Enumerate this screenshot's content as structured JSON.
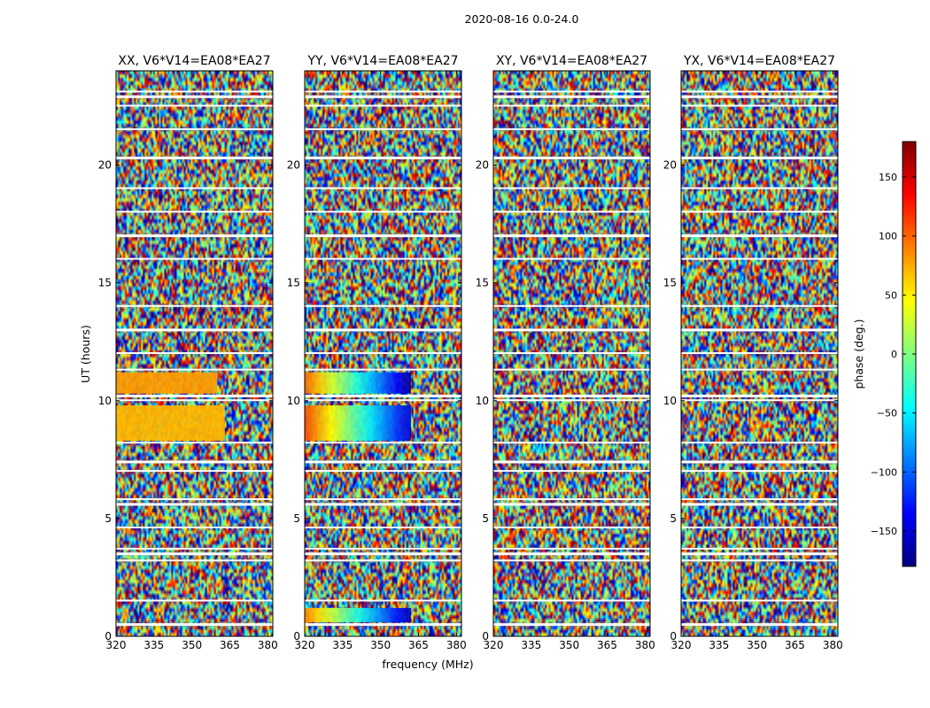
{
  "figure": {
    "suptitle": "2020-08-16 0.0-24.0",
    "xlabel": "frequency (MHz)",
    "ylabel": "UT (hours)"
  },
  "colorbar": {
    "label": "phase (deg.)",
    "ticks": [
      150,
      100,
      50,
      0,
      -50,
      -100,
      -150
    ],
    "tick_labels": [
      "150",
      "100",
      "50",
      "0",
      "−50",
      "−100",
      "−150"
    ],
    "range": [
      -180,
      180
    ],
    "colormap": "jet",
    "colors": [
      "#00007f",
      "#0000ff",
      "#007fff",
      "#00ffff",
      "#7fff7f",
      "#ffff00",
      "#ff7f00",
      "#ff0000",
      "#7f0000"
    ]
  },
  "chart_data": [
    {
      "type": "heatmap",
      "title": "XX, V6*V14=EA08*EA27",
      "xlim": [
        320,
        382
      ],
      "ylim": [
        0,
        24
      ],
      "xticks": [
        320,
        335,
        350,
        365,
        380
      ],
      "xtick_labels": [
        "320",
        "335",
        "350",
        "365",
        "380"
      ],
      "yticks": [
        0,
        5,
        10,
        15,
        20
      ],
      "ytick_labels": [
        "0",
        "5",
        "10",
        "15",
        "20"
      ],
      "coherent_regions": [
        {
          "t": [
            8.3,
            9.8
          ],
          "f": [
            320,
            363
          ],
          "phase_deg": 70
        },
        {
          "t": [
            10.3,
            11.2
          ],
          "f": [
            320,
            360
          ],
          "phase_deg": 80
        }
      ]
    },
    {
      "type": "heatmap",
      "title": "YY, V6*V14=EA08*EA27",
      "xlim": [
        320,
        382
      ],
      "ylim": [
        0,
        24
      ],
      "xticks": [
        320,
        335,
        350,
        365,
        380
      ],
      "xtick_labels": [
        "320",
        "335",
        "350",
        "365",
        "380"
      ],
      "yticks": [
        0,
        5,
        10,
        15,
        20
      ],
      "ytick_labels": [
        "0",
        "5",
        "10",
        "15",
        "20"
      ],
      "coherent_regions": [
        {
          "t": [
            8.3,
            9.8
          ],
          "f": [
            320,
            362
          ],
          "phase_start_deg": 110,
          "phase_end_deg": -150
        },
        {
          "t": [
            10.3,
            11.2
          ],
          "f": [
            320,
            362
          ],
          "phase_start_deg": 100,
          "phase_end_deg": -170
        },
        {
          "t": [
            0.6,
            1.2
          ],
          "f": [
            320,
            362
          ],
          "phase_start_deg": 90,
          "phase_end_deg": -160
        }
      ]
    },
    {
      "type": "heatmap",
      "title": "XY, V6*V14=EA08*EA27",
      "xlim": [
        320,
        382
      ],
      "ylim": [
        0,
        24
      ],
      "xticks": [
        320,
        335,
        350,
        365,
        380
      ],
      "xtick_labels": [
        "320",
        "335",
        "350",
        "365",
        "380"
      ],
      "yticks": [
        0,
        5,
        10,
        15,
        20
      ],
      "ytick_labels": [
        "0",
        "5",
        "10",
        "15",
        "20"
      ],
      "coherent_regions": []
    },
    {
      "type": "heatmap",
      "title": "YX, V6*V14=EA08*EA27",
      "xlim": [
        320,
        382
      ],
      "ylim": [
        0,
        24
      ],
      "xticks": [
        320,
        335,
        350,
        365,
        380
      ],
      "xtick_labels": [
        "320",
        "335",
        "350",
        "365",
        "380"
      ],
      "yticks": [
        0,
        5,
        10,
        15,
        20
      ],
      "ytick_labels": [
        "0",
        "5",
        "10",
        "15",
        "20"
      ],
      "coherent_regions": []
    }
  ],
  "flagged_hours": [
    0.5,
    1.5,
    3.2,
    3.5,
    3.7,
    4.6,
    5.6,
    5.8,
    7.0,
    7.4,
    8.2,
    10.0,
    10.2,
    11.3,
    12.0,
    13.0,
    14.0,
    16.0,
    17.0,
    18.0,
    19.0,
    20.3,
    21.5,
    22.5,
    22.9,
    23.1
  ]
}
